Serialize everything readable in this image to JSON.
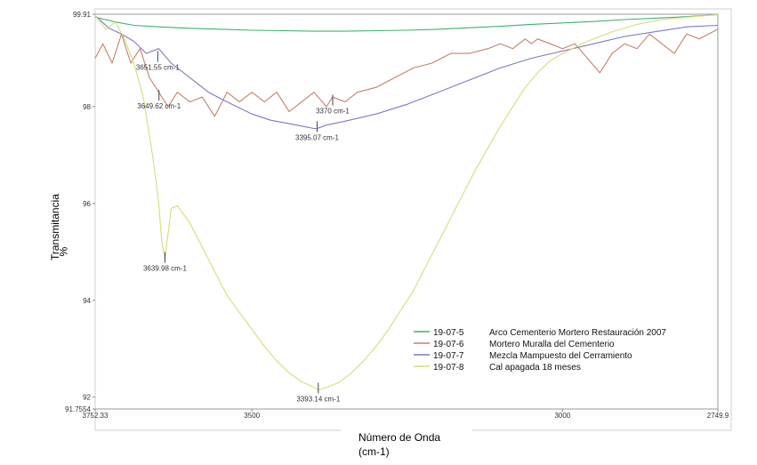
{
  "chart_data": {
    "type": "line",
    "xlabel_line1": "Número de Onda",
    "xlabel_line2": "(cm-1)",
    "ylabel_line1": "Transmitancia",
    "ylabel_line2": "%",
    "xlim": [
      3752.33,
      2749.9
    ],
    "ylim": [
      91.7554,
      99.91
    ],
    "x_ticks": [
      {
        "value": 3752.33,
        "label": "3752.33"
      },
      {
        "value": 3500,
        "label": "3500"
      },
      {
        "value": 3000,
        "label": "3000"
      },
      {
        "value": 2749.9,
        "label": "2749.9"
      }
    ],
    "y_ticks": [
      {
        "value": 99.91,
        "label": "99.91"
      },
      {
        "value": 98,
        "label": "98"
      },
      {
        "value": 96,
        "label": "96"
      },
      {
        "value": 94,
        "label": "94"
      },
      {
        "value": 92,
        "label": "92"
      },
      {
        "value": 91.7554,
        "label": "91.7554"
      }
    ],
    "grid": false,
    "legend_position": "bottom-right",
    "series": [
      {
        "name": "Arco Cementerio Mortero Restauración 2007",
        "code": "19-07-5",
        "color": "#3cb371",
        "x": [
          3752.33,
          3720,
          3690,
          3650,
          3600,
          3550,
          3500,
          3450,
          3400,
          3350,
          3300,
          3250,
          3200,
          3150,
          3100,
          3050,
          3000,
          2950,
          2900,
          2850,
          2800,
          2749.9
        ],
        "y": [
          99.85,
          99.75,
          99.68,
          99.65,
          99.62,
          99.6,
          99.58,
          99.57,
          99.56,
          99.56,
          99.57,
          99.58,
          99.6,
          99.63,
          99.66,
          99.7,
          99.73,
          99.76,
          99.8,
          99.83,
          99.86,
          99.9
        ]
      },
      {
        "name": "Mortero Muralla del Cementerio",
        "code": "19-07-6",
        "color": "#c0826a",
        "x": [
          3752.33,
          3740,
          3725,
          3710,
          3695,
          3680,
          3665,
          3650,
          3635,
          3620,
          3600,
          3580,
          3560,
          3540,
          3520,
          3500,
          3480,
          3460,
          3440,
          3420,
          3400,
          3380,
          3370,
          3350,
          3330,
          3300,
          3270,
          3240,
          3210,
          3180,
          3150,
          3120,
          3100,
          3080,
          3060,
          3050,
          3040,
          3020,
          3000,
          2980,
          2960,
          2940,
          2920,
          2900,
          2880,
          2860,
          2840,
          2820,
          2800,
          2780,
          2749.9
        ],
        "y": [
          99.0,
          99.3,
          98.9,
          99.5,
          98.9,
          99.2,
          98.6,
          98.3,
          98.0,
          98.3,
          98.1,
          98.2,
          97.8,
          98.3,
          98.1,
          98.3,
          98.1,
          98.3,
          97.9,
          98.1,
          98.3,
          98.0,
          98.2,
          98.1,
          98.3,
          98.4,
          98.6,
          98.8,
          98.9,
          99.1,
          99.1,
          99.2,
          99.3,
          99.2,
          99.4,
          99.3,
          99.4,
          99.3,
          99.2,
          99.3,
          99.0,
          98.7,
          99.1,
          99.3,
          99.2,
          99.5,
          99.3,
          99.1,
          99.5,
          99.4,
          99.6
        ]
      },
      {
        "name": "Mezcla Mampuesto del Cerramiento",
        "code": "19-07-7",
        "color": "#7b78c9",
        "x": [
          3752.33,
          3730,
          3710,
          3690,
          3670,
          3650,
          3630,
          3600,
          3570,
          3540,
          3500,
          3470,
          3440,
          3420,
          3400,
          3395,
          3380,
          3350,
          3300,
          3250,
          3200,
          3150,
          3100,
          3050,
          3000,
          2950,
          2900,
          2850,
          2800,
          2749.9
        ],
        "y": [
          99.88,
          99.62,
          99.5,
          99.35,
          99.1,
          99.2,
          98.9,
          98.6,
          98.3,
          98.1,
          97.85,
          97.72,
          97.65,
          97.6,
          97.55,
          97.55,
          97.62,
          97.7,
          97.85,
          98.05,
          98.3,
          98.55,
          98.8,
          99.0,
          99.15,
          99.3,
          99.45,
          99.55,
          99.65,
          99.68
        ]
      },
      {
        "name": "Cal apagada 18 meses",
        "code": "19-07-8",
        "color": "#d6dc7a",
        "x": [
          3752.33,
          3735,
          3720,
          3705,
          3690,
          3675,
          3660,
          3650,
          3645,
          3640,
          3630,
          3620,
          3600,
          3580,
          3560,
          3540,
          3520,
          3500,
          3480,
          3460,
          3440,
          3420,
          3400,
          3393.14,
          3380,
          3360,
          3340,
          3320,
          3300,
          3280,
          3260,
          3240,
          3220,
          3200,
          3180,
          3160,
          3140,
          3120,
          3100,
          3080,
          3060,
          3040,
          3020,
          3000,
          2960,
          2920,
          2880,
          2840,
          2800,
          2749.9
        ],
        "y": [
          99.88,
          99.6,
          99.75,
          99.4,
          98.9,
          98.2,
          97.0,
          96.0,
          95.2,
          94.85,
          95.9,
          95.95,
          95.6,
          95.1,
          94.6,
          94.1,
          93.75,
          93.4,
          93.05,
          92.75,
          92.5,
          92.32,
          92.2,
          92.15,
          92.2,
          92.3,
          92.5,
          92.75,
          93.05,
          93.4,
          93.8,
          94.2,
          94.7,
          95.2,
          95.7,
          96.2,
          96.7,
          97.15,
          97.6,
          98.0,
          98.4,
          98.7,
          98.95,
          99.1,
          99.35,
          99.55,
          99.7,
          99.8,
          99.85,
          99.9
        ]
      }
    ],
    "annotations": [
      {
        "label": "3651.55 cm-1",
        "x": 3651.55,
        "y": 99.0
      },
      {
        "label": "3649.62 cm-1",
        "x": 3649.62,
        "y": 98.2
      },
      {
        "label": "3370 cm-1",
        "x": 3370,
        "y": 98.1
      },
      {
        "label": "3395.07 cm-1",
        "x": 3395.07,
        "y": 97.55
      },
      {
        "label": "3639.98 cm-1",
        "x": 3639.98,
        "y": 94.85
      },
      {
        "label": "3393.14 cm-1",
        "x": 3393.14,
        "y": 92.15
      }
    ]
  }
}
